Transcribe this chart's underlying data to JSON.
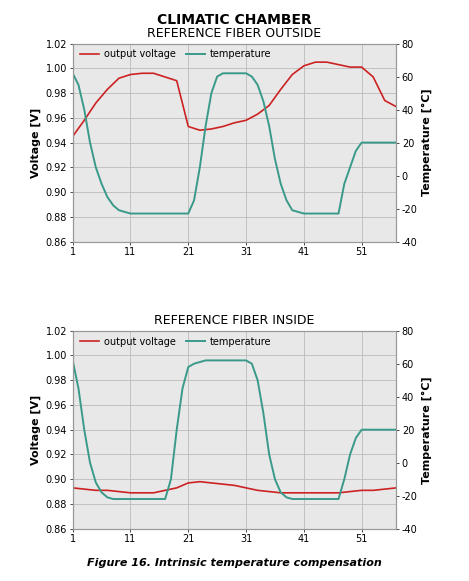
{
  "main_title": "CLIMATIC CHAMBER",
  "figure_caption": "Figure 16. Intrinsic temperature compensation",
  "charts": [
    {
      "title": "REFERENCE FIBER OUTSIDE",
      "ylabel_left": "Voltage [V]",
      "ylabel_right": "Temperature [°C]",
      "ylim_left": [
        0.86,
        1.02
      ],
      "ylim_right": [
        -40,
        80
      ],
      "yticks_left": [
        0.86,
        0.88,
        0.9,
        0.92,
        0.94,
        0.96,
        0.98,
        1.0,
        1.02
      ],
      "yticks_right": [
        -40,
        -20,
        0,
        20,
        40,
        60,
        80
      ],
      "xticks": [
        1,
        11,
        21,
        31,
        41,
        51
      ],
      "xlim": [
        1,
        57
      ],
      "voltage_x": [
        1,
        3,
        5,
        7,
        9,
        11,
        13,
        15,
        17,
        19,
        21,
        23,
        25,
        27,
        29,
        31,
        33,
        35,
        37,
        39,
        41,
        43,
        45,
        47,
        49,
        51,
        53,
        55,
        57
      ],
      "voltage_y": [
        0.945,
        0.958,
        0.972,
        0.983,
        0.992,
        0.995,
        0.996,
        0.996,
        0.993,
        0.99,
        0.953,
        0.95,
        0.951,
        0.953,
        0.956,
        0.958,
        0.963,
        0.97,
        0.983,
        0.995,
        1.002,
        1.005,
        1.005,
        1.003,
        1.001,
        1.001,
        0.993,
        0.974,
        0.969
      ],
      "temp_x": [
        1,
        2,
        3,
        4,
        5,
        6,
        7,
        8,
        9,
        10,
        11,
        12,
        13,
        14,
        15,
        16,
        17,
        18,
        19,
        20,
        21,
        22,
        23,
        24,
        25,
        26,
        27,
        28,
        29,
        30,
        31,
        32,
        33,
        34,
        35,
        36,
        37,
        38,
        39,
        40,
        41,
        42,
        43,
        44,
        45,
        46,
        47,
        48,
        49,
        50,
        51,
        52,
        53,
        54,
        55,
        56,
        57
      ],
      "temp_y": [
        62,
        55,
        40,
        20,
        5,
        -5,
        -13,
        -18,
        -21,
        -22,
        -23,
        -23,
        -23,
        -23,
        -23,
        -23,
        -23,
        -23,
        -23,
        -23,
        -23,
        -15,
        5,
        30,
        50,
        60,
        62,
        62,
        62,
        62,
        62,
        60,
        55,
        45,
        30,
        10,
        -5,
        -15,
        -21,
        -22,
        -23,
        -23,
        -23,
        -23,
        -23,
        -23,
        -23,
        -5,
        5,
        15,
        20,
        20,
        20,
        20,
        20,
        20,
        20
      ]
    },
    {
      "title": "REFERENCE FIBER INSIDE",
      "ylabel_left": "Voltage [V]",
      "ylabel_right": "Temperature [°C]",
      "ylim_left": [
        0.86,
        1.02
      ],
      "ylim_right": [
        -40,
        80
      ],
      "yticks_left": [
        0.86,
        0.88,
        0.9,
        0.92,
        0.94,
        0.96,
        0.98,
        1.0,
        1.02
      ],
      "yticks_right": [
        -40,
        -20,
        0,
        20,
        40,
        60,
        80
      ],
      "xticks": [
        1,
        11,
        21,
        31,
        41,
        51
      ],
      "xlim": [
        1,
        57
      ],
      "voltage_x": [
        1,
        3,
        5,
        7,
        9,
        11,
        13,
        15,
        17,
        19,
        21,
        23,
        25,
        27,
        29,
        31,
        33,
        35,
        37,
        39,
        41,
        43,
        45,
        47,
        49,
        51,
        53,
        55,
        57
      ],
      "voltage_y": [
        0.893,
        0.892,
        0.891,
        0.891,
        0.89,
        0.889,
        0.889,
        0.889,
        0.891,
        0.893,
        0.897,
        0.898,
        0.897,
        0.896,
        0.895,
        0.893,
        0.891,
        0.89,
        0.889,
        0.889,
        0.889,
        0.889,
        0.889,
        0.889,
        0.89,
        0.891,
        0.891,
        0.892,
        0.893
      ],
      "temp_x": [
        1,
        2,
        3,
        4,
        5,
        6,
        7,
        8,
        9,
        10,
        11,
        12,
        13,
        14,
        15,
        16,
        17,
        18,
        19,
        20,
        21,
        22,
        23,
        24,
        25,
        26,
        27,
        28,
        29,
        30,
        31,
        32,
        33,
        34,
        35,
        36,
        37,
        38,
        39,
        40,
        41,
        42,
        43,
        44,
        45,
        46,
        47,
        48,
        49,
        50,
        51,
        52,
        53,
        54,
        55,
        56,
        57
      ],
      "temp_y": [
        62,
        45,
        20,
        0,
        -12,
        -18,
        -21,
        -22,
        -22,
        -22,
        -22,
        -22,
        -22,
        -22,
        -22,
        -22,
        -22,
        -10,
        20,
        45,
        58,
        60,
        61,
        62,
        62,
        62,
        62,
        62,
        62,
        62,
        62,
        60,
        50,
        30,
        5,
        -10,
        -18,
        -21,
        -22,
        -22,
        -22,
        -22,
        -22,
        -22,
        -22,
        -22,
        -22,
        -10,
        5,
        15,
        20,
        20,
        20,
        20,
        20,
        20,
        20
      ]
    }
  ],
  "voltage_color": "#cc2222",
  "temp_color": "#3a9a8a",
  "grid_color": "#bbbbbb",
  "plot_bg_color": "#e8e8e8",
  "legend_voltage": "output voltage",
  "legend_temp": "temperature",
  "title_fontsize": 9,
  "main_title_fontsize": 10,
  "axis_label_fontsize": 8,
  "tick_fontsize": 7,
  "legend_fontsize": 7,
  "caption_fontsize": 8
}
